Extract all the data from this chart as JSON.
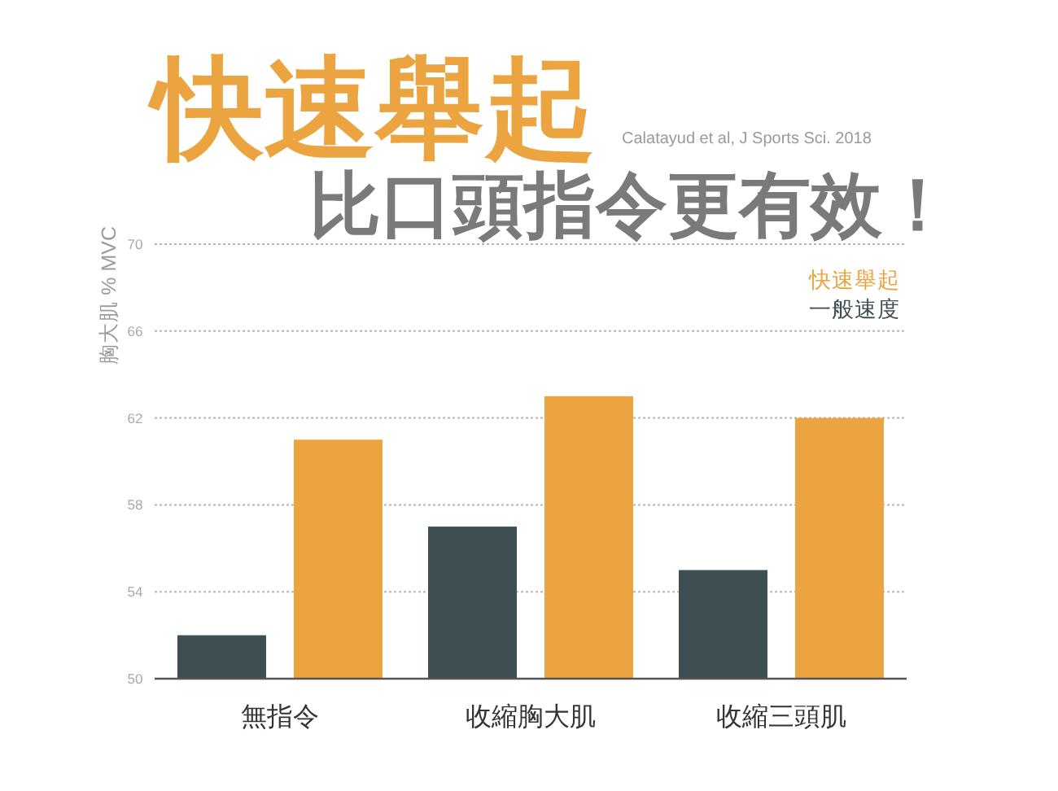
{
  "chart_data": {
    "type": "bar",
    "title": "快速舉起",
    "subtitle": "比口頭指令更有效！",
    "ylabel": "胸大肌 % MVC",
    "annotations": [
      "Calatayud et al, J Sports Sci. 2018"
    ],
    "categories": [
      "無指令",
      "收縮胸大肌",
      "收縮三頭肌"
    ],
    "series": [
      {
        "name": "一般速度",
        "color": "#3e4f53",
        "values": [
          52,
          57,
          55
        ]
      },
      {
        "name": "快速舉起",
        "color": "#eba43f",
        "values": [
          61,
          63,
          62
        ]
      }
    ],
    "ylim": [
      50,
      70
    ],
    "yticks": [
      50,
      54,
      58,
      62,
      66,
      70
    ],
    "grid": "y",
    "legend": "top right"
  }
}
